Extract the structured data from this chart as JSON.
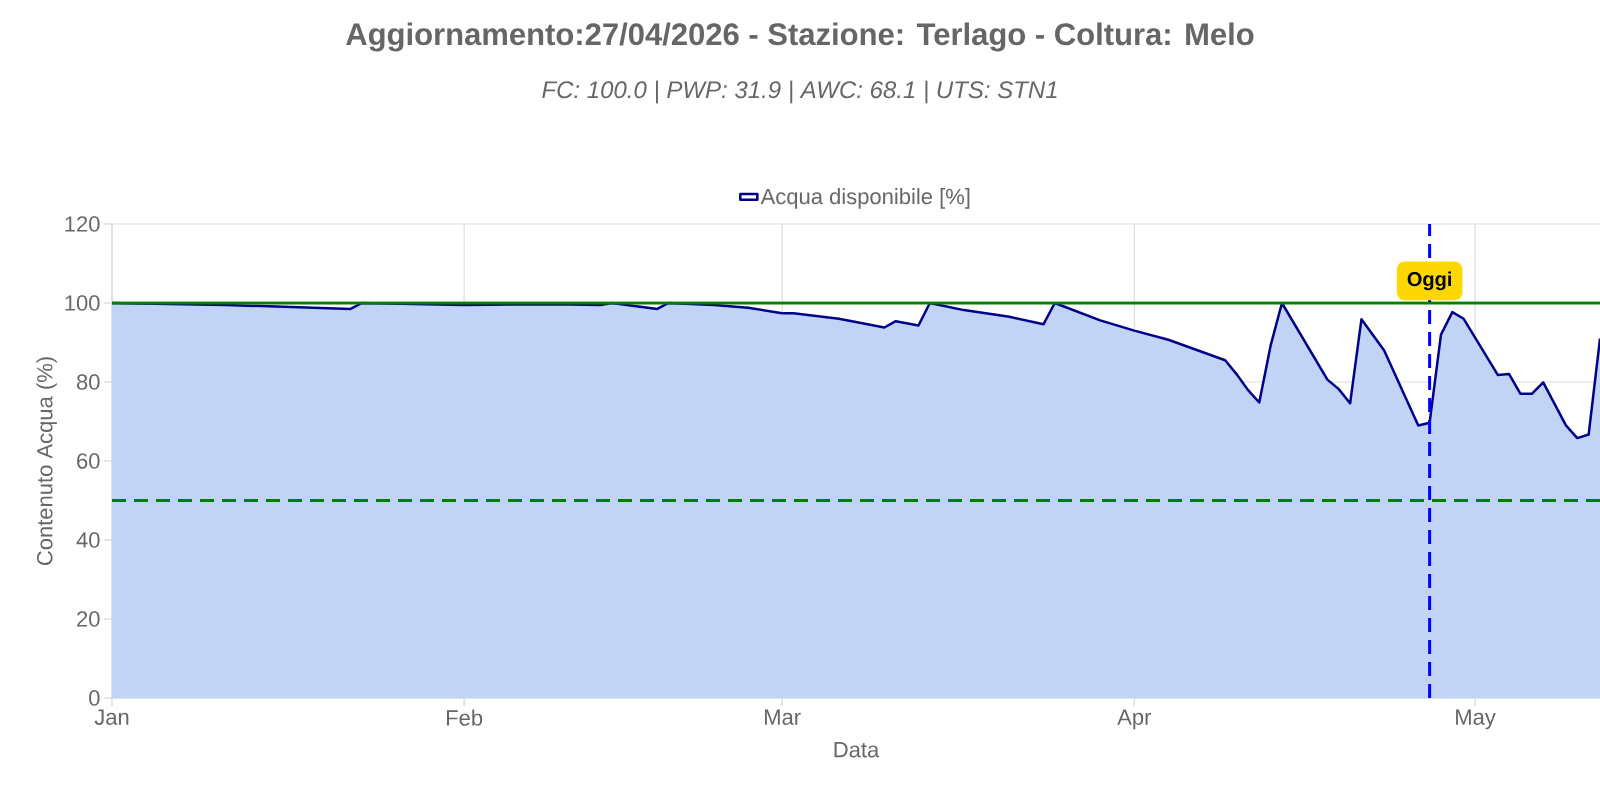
{
  "chart_data": {
    "type": "area",
    "title": "Aggiornamento:27/04/2026 - Stazione: Terlago - Coltura: Melo",
    "subtitle": "FC: 100.0 | PWP: 31.9 | AWC: 68.1 | UTS: STN1",
    "xlabel": "Data",
    "ylabel": "Contenuto Acqua (%)",
    "x": [
      "2026-01-01",
      "2026-01-11",
      "2026-01-22",
      "2026-01-23",
      "2026-02-01",
      "2026-02-09",
      "2026-02-13",
      "2026-02-14",
      "2026-02-18",
      "2026-02-19",
      "2026-02-23",
      "2026-02-26",
      "2026-03-01",
      "2026-03-02",
      "2026-03-06",
      "2026-03-10",
      "2026-03-11",
      "2026-03-13",
      "2026-03-14",
      "2026-03-17",
      "2026-03-21",
      "2026-03-24",
      "2026-03-25",
      "2026-03-29",
      "2026-04-01",
      "2026-04-04",
      "2026-04-09",
      "2026-04-10",
      "2026-04-11",
      "2026-04-12",
      "2026-04-13",
      "2026-04-14",
      "2026-04-18",
      "2026-04-19",
      "2026-04-20",
      "2026-04-21",
      "2026-04-23",
      "2026-04-26",
      "2026-04-27",
      "2026-04-28",
      "2026-04-29",
      "2026-04-30",
      "2026-05-03",
      "2026-05-04",
      "2026-05-05",
      "2026-05-06",
      "2026-05-07",
      "2026-05-09",
      "2026-05-10",
      "2026-05-11",
      "2026-05-12"
    ],
    "series": [
      {
        "name": "Acqua disponibile [%]",
        "color": "#00008b",
        "values": [
          100,
          99.5,
          98.5,
          100,
          99.5,
          99.7,
          99.5,
          100,
          98.5,
          100,
          99.5,
          98.8,
          97.4,
          97.4,
          96,
          93.8,
          95.4,
          94.3,
          100,
          98.2,
          96.5,
          94.6,
          100,
          95.6,
          93,
          90.7,
          85.5,
          82,
          78,
          74.8,
          89.2,
          100,
          80.6,
          78.2,
          74.6,
          95.9,
          88,
          69,
          69.7,
          92,
          97.7,
          96,
          81.8,
          82,
          77,
          77,
          79.9,
          69,
          65.8,
          66.7,
          91
        ]
      }
    ],
    "xlim": [
      "2026-01-01",
      "2026-05-12"
    ],
    "xticks": [
      {
        "value": "2026-01-01",
        "label": "Jan"
      },
      {
        "value": "2026-02-01",
        "label": "Feb"
      },
      {
        "value": "2026-03-01",
        "label": "Mar"
      },
      {
        "value": "2026-04-01",
        "label": "Apr"
      },
      {
        "value": "2026-05-01",
        "label": "May"
      }
    ],
    "ylim": [
      0,
      120
    ],
    "yticks": [
      0,
      20,
      40,
      60,
      80,
      100,
      120
    ],
    "ref_lines": [
      {
        "axis": "y",
        "value": 100,
        "color": "#008000"
      },
      {
        "axis": "y",
        "value": 50,
        "color": "#008000",
        "line_style": "dashed"
      },
      {
        "axis": "x",
        "value": "2026-04-27",
        "label": "Oggi",
        "color": "#0000ff",
        "line_style": "dashed"
      }
    ],
    "grid": true,
    "legend": "top"
  }
}
